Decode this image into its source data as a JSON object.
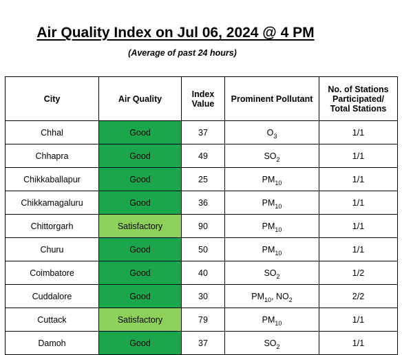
{
  "header": {
    "title": "Air Quality Index on Jul 06, 2024 @ 4 PM",
    "subtitle": "(Average of past 24 hours)"
  },
  "table": {
    "columns": {
      "city": "City",
      "air_quality": "Air Quality",
      "index_line1": "Index",
      "index_line2": "Value",
      "pollutant": "Prominent Pollutant",
      "stations_line1": "No. of Stations",
      "stations_line2": "Participated/",
      "stations_line3": "Total Stations"
    },
    "rows": [
      {
        "city": "Chhal",
        "quality": "Good",
        "index": "37",
        "pollutants": [
          {
            "base": "O",
            "sub": "3"
          }
        ],
        "stations": "1/1"
      },
      {
        "city": "Chhapra",
        "quality": "Good",
        "index": "49",
        "pollutants": [
          {
            "base": "SO",
            "sub": "2"
          }
        ],
        "stations": "1/1"
      },
      {
        "city": "Chikkaballapur",
        "quality": "Good",
        "index": "25",
        "pollutants": [
          {
            "base": "PM",
            "sub": "10"
          }
        ],
        "stations": "1/1"
      },
      {
        "city": "Chikkamagaluru",
        "quality": "Good",
        "index": "36",
        "pollutants": [
          {
            "base": "PM",
            "sub": "10"
          }
        ],
        "stations": "1/1"
      },
      {
        "city": "Chittorgarh",
        "quality": "Satisfactory",
        "index": "90",
        "pollutants": [
          {
            "base": "PM",
            "sub": "10"
          }
        ],
        "stations": "1/1"
      },
      {
        "city": "Churu",
        "quality": "Good",
        "index": "50",
        "pollutants": [
          {
            "base": "PM",
            "sub": "10"
          }
        ],
        "stations": "1/1"
      },
      {
        "city": "Coimbatore",
        "quality": "Good",
        "index": "40",
        "pollutants": [
          {
            "base": "SO",
            "sub": "2"
          }
        ],
        "stations": "1/2"
      },
      {
        "city": "Cuddalore",
        "quality": "Good",
        "index": "30",
        "pollutants": [
          {
            "base": "PM",
            "sub": "10"
          },
          {
            "base": "NO",
            "sub": "2"
          }
        ],
        "stations": "2/2"
      },
      {
        "city": "Cuttack",
        "quality": "Satisfactory",
        "index": "79",
        "pollutants": [
          {
            "base": "PM",
            "sub": "10"
          }
        ],
        "stations": "1/1"
      },
      {
        "city": "Damoh",
        "quality": "Good",
        "index": "37",
        "pollutants": [
          {
            "base": "SO",
            "sub": "2"
          }
        ],
        "stations": "1/1"
      }
    ]
  },
  "colors": {
    "good": "#1aa64a",
    "satisfactory": "#8dd05a"
  }
}
